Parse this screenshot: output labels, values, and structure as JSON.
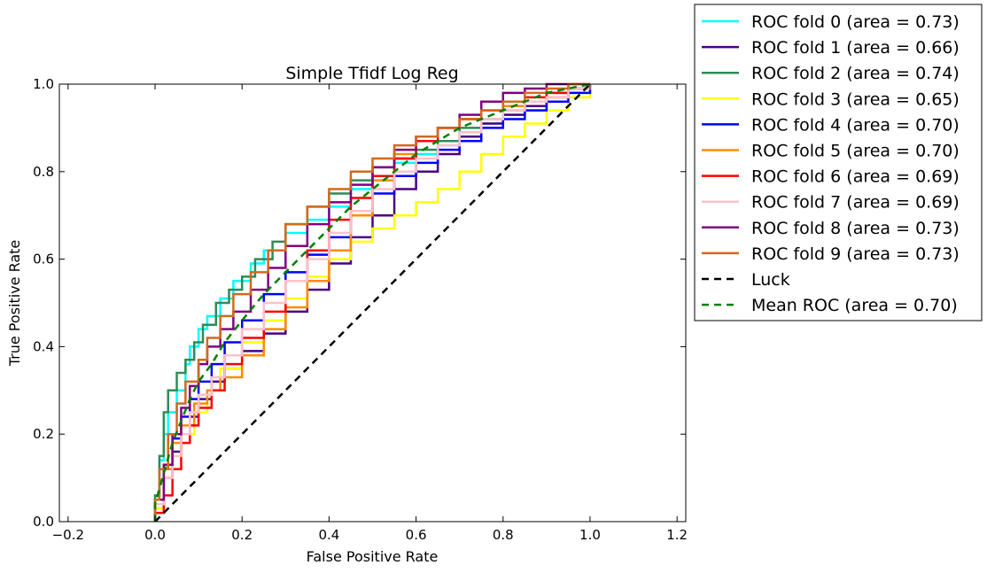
{
  "chart_data": {
    "type": "line",
    "title": "Simple Tfidf Log Reg",
    "xlabel": "False Positive Rate",
    "ylabel": "True Positive Rate",
    "xlim": [
      -0.22,
      1.22
    ],
    "ylim": [
      0.0,
      1.0
    ],
    "xticks": [
      -0.2,
      0.0,
      0.2,
      0.4,
      0.6,
      0.8,
      1.0,
      1.2
    ],
    "yticks": [
      0.0,
      0.2,
      0.4,
      0.6,
      0.8,
      1.0
    ],
    "xtick_labels": [
      "−0.2",
      "0.0",
      "0.2",
      "0.4",
      "0.6",
      "0.8",
      "1.0",
      "1.2"
    ],
    "ytick_labels": [
      "0.0",
      "0.2",
      "0.4",
      "0.6",
      "0.8",
      "1.0"
    ],
    "grid": false,
    "legend_position": "outside-top-right",
    "series": [
      {
        "name": "ROC fold 0 (area = 0.73)",
        "color": "#00ffff",
        "dash": "solid",
        "x": [
          0.0,
          0.0,
          0.01,
          0.02,
          0.03,
          0.05,
          0.07,
          0.08,
          0.1,
          0.12,
          0.15,
          0.18,
          0.22,
          0.25,
          0.3,
          0.35,
          0.4,
          0.45,
          0.5,
          0.55,
          0.6,
          0.65,
          0.7,
          0.75,
          0.8,
          0.85,
          0.9,
          0.95,
          1.0
        ],
        "y": [
          0.0,
          0.05,
          0.14,
          0.2,
          0.25,
          0.3,
          0.36,
          0.4,
          0.44,
          0.47,
          0.51,
          0.55,
          0.59,
          0.62,
          0.66,
          0.69,
          0.72,
          0.76,
          0.79,
          0.82,
          0.84,
          0.86,
          0.89,
          0.91,
          0.93,
          0.94,
          0.96,
          0.98,
          1.0
        ]
      },
      {
        "name": "ROC fold 1 (area = 0.66)",
        "color": "#4b0082",
        "dash": "solid",
        "x": [
          0.0,
          0.0,
          0.02,
          0.04,
          0.06,
          0.08,
          0.1,
          0.13,
          0.16,
          0.2,
          0.25,
          0.3,
          0.35,
          0.4,
          0.45,
          0.5,
          0.55,
          0.6,
          0.65,
          0.7,
          0.75,
          0.8,
          0.85,
          0.9,
          0.95,
          1.0
        ],
        "y": [
          0.0,
          0.03,
          0.1,
          0.16,
          0.2,
          0.24,
          0.28,
          0.32,
          0.35,
          0.39,
          0.43,
          0.48,
          0.53,
          0.59,
          0.65,
          0.7,
          0.76,
          0.8,
          0.84,
          0.88,
          0.91,
          0.93,
          0.95,
          0.97,
          0.99,
          1.0
        ]
      },
      {
        "name": "ROC fold 2 (area = 0.74)",
        "color": "#2e8b57",
        "dash": "solid",
        "x": [
          0.0,
          0.0,
          0.01,
          0.02,
          0.03,
          0.05,
          0.07,
          0.09,
          0.11,
          0.14,
          0.17,
          0.2,
          0.23,
          0.27,
          0.3,
          0.35,
          0.4,
          0.45,
          0.5,
          0.55,
          0.6,
          0.65,
          0.7,
          0.75,
          0.8,
          0.85,
          0.9,
          0.95,
          1.0
        ],
        "y": [
          0.0,
          0.06,
          0.15,
          0.25,
          0.3,
          0.34,
          0.37,
          0.41,
          0.45,
          0.5,
          0.53,
          0.56,
          0.6,
          0.64,
          0.68,
          0.72,
          0.75,
          0.78,
          0.81,
          0.83,
          0.85,
          0.87,
          0.9,
          0.92,
          0.94,
          0.96,
          0.98,
          0.99,
          1.0
        ]
      },
      {
        "name": "ROC fold 3 (area = 0.65)",
        "color": "#ffff00",
        "dash": "solid",
        "x": [
          0.0,
          0.0,
          0.02,
          0.04,
          0.06,
          0.09,
          0.12,
          0.15,
          0.2,
          0.25,
          0.3,
          0.35,
          0.4,
          0.45,
          0.5,
          0.55,
          0.6,
          0.65,
          0.7,
          0.75,
          0.8,
          0.85,
          0.9,
          0.95,
          1.0
        ],
        "y": [
          0.0,
          0.03,
          0.1,
          0.15,
          0.2,
          0.25,
          0.3,
          0.35,
          0.41,
          0.46,
          0.51,
          0.56,
          0.6,
          0.64,
          0.67,
          0.7,
          0.73,
          0.76,
          0.8,
          0.84,
          0.88,
          0.91,
          0.94,
          0.97,
          1.0
        ]
      },
      {
        "name": "ROC fold 4 (area = 0.70)",
        "color": "#0000ff",
        "dash": "solid",
        "x": [
          0.0,
          0.0,
          0.02,
          0.04,
          0.06,
          0.08,
          0.1,
          0.13,
          0.16,
          0.2,
          0.25,
          0.3,
          0.35,
          0.4,
          0.45,
          0.5,
          0.55,
          0.6,
          0.65,
          0.7,
          0.75,
          0.8,
          0.85,
          0.9,
          0.95,
          1.0
        ],
        "y": [
          0.0,
          0.04,
          0.12,
          0.19,
          0.24,
          0.28,
          0.32,
          0.36,
          0.41,
          0.46,
          0.52,
          0.57,
          0.61,
          0.65,
          0.7,
          0.75,
          0.79,
          0.82,
          0.85,
          0.87,
          0.9,
          0.92,
          0.94,
          0.96,
          0.98,
          1.0
        ]
      },
      {
        "name": "ROC fold 5 (area = 0.70)",
        "color": "#ff8c00",
        "dash": "solid",
        "x": [
          0.0,
          0.0,
          0.02,
          0.04,
          0.06,
          0.09,
          0.12,
          0.15,
          0.2,
          0.25,
          0.3,
          0.35,
          0.4,
          0.45,
          0.5,
          0.55,
          0.6,
          0.65,
          0.7,
          0.75,
          0.8,
          0.85,
          0.9,
          0.95,
          1.0
        ],
        "y": [
          0.0,
          0.04,
          0.12,
          0.18,
          0.22,
          0.27,
          0.3,
          0.33,
          0.38,
          0.44,
          0.49,
          0.55,
          0.62,
          0.7,
          0.78,
          0.84,
          0.88,
          0.9,
          0.92,
          0.94,
          0.95,
          0.96,
          0.97,
          0.99,
          1.0
        ]
      },
      {
        "name": "ROC fold 6 (area = 0.69)",
        "color": "#ff0000",
        "dash": "solid",
        "x": [
          0.0,
          0.0,
          0.02,
          0.04,
          0.06,
          0.08,
          0.1,
          0.13,
          0.16,
          0.2,
          0.25,
          0.3,
          0.35,
          0.4,
          0.45,
          0.5,
          0.55,
          0.6,
          0.65,
          0.7,
          0.75,
          0.8,
          0.85,
          0.9,
          0.95,
          1.0
        ],
        "y": [
          0.0,
          0.02,
          0.06,
          0.12,
          0.18,
          0.22,
          0.26,
          0.3,
          0.36,
          0.42,
          0.48,
          0.55,
          0.62,
          0.69,
          0.74,
          0.79,
          0.83,
          0.87,
          0.9,
          0.92,
          0.94,
          0.96,
          0.97,
          0.98,
          0.99,
          1.0
        ]
      },
      {
        "name": "ROC fold 7 (area = 0.69)",
        "color": "#ffc0cb",
        "dash": "solid",
        "x": [
          0.0,
          0.0,
          0.02,
          0.04,
          0.06,
          0.08,
          0.1,
          0.13,
          0.16,
          0.2,
          0.25,
          0.3,
          0.35,
          0.4,
          0.45,
          0.5,
          0.55,
          0.6,
          0.65,
          0.7,
          0.75,
          0.8,
          0.85,
          0.9,
          0.95,
          1.0
        ],
        "y": [
          0.0,
          0.04,
          0.1,
          0.15,
          0.2,
          0.25,
          0.29,
          0.33,
          0.38,
          0.44,
          0.5,
          0.55,
          0.6,
          0.66,
          0.71,
          0.76,
          0.8,
          0.83,
          0.86,
          0.89,
          0.92,
          0.94,
          0.96,
          0.97,
          0.99,
          1.0
        ]
      },
      {
        "name": "ROC fold 8 (area = 0.73)",
        "color": "#800080",
        "dash": "solid",
        "x": [
          0.0,
          0.0,
          0.02,
          0.04,
          0.06,
          0.08,
          0.1,
          0.12,
          0.15,
          0.18,
          0.22,
          0.26,
          0.3,
          0.35,
          0.4,
          0.45,
          0.5,
          0.55,
          0.6,
          0.65,
          0.7,
          0.75,
          0.8,
          0.85,
          0.9,
          0.95,
          1.0
        ],
        "y": [
          0.0,
          0.05,
          0.13,
          0.2,
          0.26,
          0.31,
          0.36,
          0.4,
          0.44,
          0.48,
          0.53,
          0.58,
          0.63,
          0.68,
          0.73,
          0.77,
          0.81,
          0.85,
          0.88,
          0.9,
          0.93,
          0.96,
          0.98,
          0.99,
          1.0,
          1.0,
          1.0
        ]
      },
      {
        "name": "ROC fold 9 (area = 0.73)",
        "color": "#d2691e",
        "dash": "solid",
        "x": [
          0.0,
          0.0,
          0.01,
          0.03,
          0.05,
          0.07,
          0.1,
          0.12,
          0.15,
          0.18,
          0.22,
          0.26,
          0.3,
          0.35,
          0.4,
          0.45,
          0.5,
          0.55,
          0.6,
          0.65,
          0.7,
          0.75,
          0.8,
          0.85,
          0.9,
          0.95,
          1.0
        ],
        "y": [
          0.0,
          0.05,
          0.12,
          0.2,
          0.27,
          0.32,
          0.37,
          0.42,
          0.47,
          0.52,
          0.57,
          0.62,
          0.68,
          0.72,
          0.76,
          0.8,
          0.83,
          0.86,
          0.88,
          0.9,
          0.92,
          0.94,
          0.96,
          0.98,
          0.99,
          1.0,
          1.0
        ]
      },
      {
        "name": "Luck",
        "color": "#000000",
        "dash": "dashed",
        "x": [
          0.0,
          1.0
        ],
        "y": [
          0.0,
          1.0
        ]
      },
      {
        "name": "Mean ROC (area = 0.70)",
        "color": "#008000",
        "dash": "dashed",
        "x": [
          0.0,
          0.0,
          0.02,
          0.04,
          0.06,
          0.08,
          0.1,
          0.13,
          0.16,
          0.2,
          0.25,
          0.3,
          0.35,
          0.4,
          0.45,
          0.5,
          0.55,
          0.6,
          0.65,
          0.7,
          0.75,
          0.8,
          0.85,
          0.9,
          0.95,
          1.0
        ],
        "y": [
          0.0,
          0.04,
          0.11,
          0.18,
          0.23,
          0.28,
          0.32,
          0.36,
          0.41,
          0.46,
          0.52,
          0.57,
          0.62,
          0.67,
          0.72,
          0.76,
          0.8,
          0.84,
          0.87,
          0.9,
          0.92,
          0.94,
          0.96,
          0.98,
          0.99,
          1.0
        ]
      }
    ]
  }
}
